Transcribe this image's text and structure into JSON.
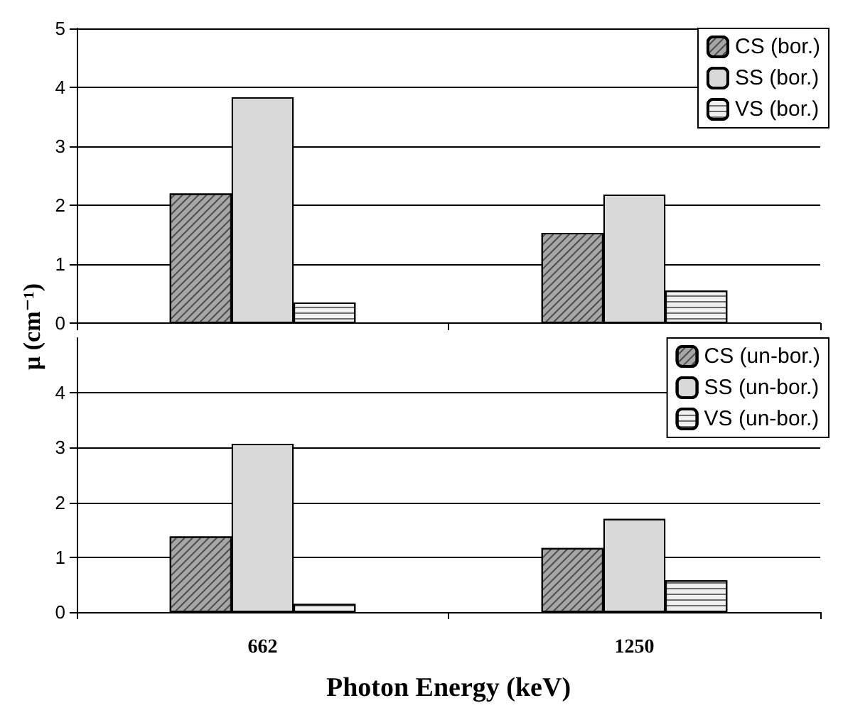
{
  "chart_data": [
    {
      "type": "bar",
      "ylabel": "μ (cm⁻¹)",
      "categories": [
        "662",
        "1250"
      ],
      "series": [
        {
          "name": "CS (bor.)",
          "color": "#a6a6a6",
          "values": [
            2.2,
            1.53
          ]
        },
        {
          "name": "SS (bor.)",
          "color": "#d9d9d9",
          "values": [
            3.83,
            2.18
          ]
        },
        {
          "name": "VS (bor.)",
          "color": "#f0f0f0",
          "values": [
            0.35,
            0.55
          ]
        }
      ],
      "ylim": [
        0,
        5
      ],
      "yticks": [
        0,
        1,
        2,
        3,
        4,
        5
      ],
      "grid": "y",
      "legend": "top right",
      "tick_labels": "y"
    },
    {
      "type": "bar",
      "xlabel": "Photon Energy (keV)",
      "categories": [
        "662",
        "1250"
      ],
      "series": [
        {
          "name": "CS (un-bor.)",
          "color": "#a6a6a6",
          "values": [
            1.38,
            1.17
          ]
        },
        {
          "name": "SS (un-bor.)",
          "color": "#d9d9d9",
          "values": [
            3.07,
            1.7
          ]
        },
        {
          "name": "VS (un-bor.)",
          "color": "#f0f0f0",
          "values": [
            0.15,
            0.58
          ]
        }
      ],
      "ylim": [
        0,
        5
      ],
      "yticks": [
        0,
        1,
        2,
        3,
        4
      ],
      "grid": "y",
      "legend": "top right"
    }
  ]
}
